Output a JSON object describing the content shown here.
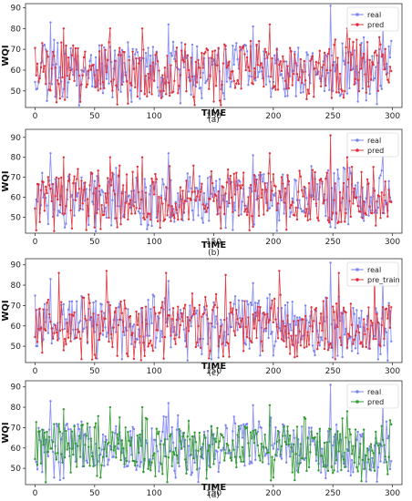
{
  "chart_data": [
    {
      "type": "line",
      "caption": "(a)",
      "xlabel": "TIME",
      "ylabel": "WQI",
      "xlim": [
        -8,
        308
      ],
      "ylim": [
        42,
        92
      ],
      "xticks": [
        0,
        50,
        100,
        150,
        200,
        250,
        300
      ],
      "yticks": [
        50,
        60,
        70,
        80,
        90
      ],
      "legend_position": "top-right",
      "series": [
        {
          "name": "real",
          "color": "#7b83f0",
          "seed": 11,
          "peaks": [
            [
              13,
              83
            ],
            [
              112,
              82
            ],
            [
              183,
              81
            ],
            [
              248,
              91
            ],
            [
              292,
              83
            ]
          ]
        },
        {
          "name": "pred",
          "color": "#e0303a",
          "seed": 12,
          "peaks": [
            [
              6,
              73
            ],
            [
              24,
              80
            ],
            [
              63,
              80
            ],
            [
              90,
              80
            ],
            [
              197,
              82
            ],
            [
              262,
              80
            ]
          ]
        }
      ]
    },
    {
      "type": "line",
      "caption": "(b)",
      "xlabel": "TIME",
      "ylabel": "WQI",
      "xlim": [
        -8,
        308
      ],
      "ylim": [
        42,
        94
      ],
      "xticks": [
        0,
        50,
        100,
        150,
        200,
        250,
        300
      ],
      "yticks": [
        50,
        60,
        70,
        80,
        90
      ],
      "legend_position": "top-right",
      "series": [
        {
          "name": "real",
          "color": "#7b83f0",
          "seed": 21,
          "peaks": [
            [
              13,
              82
            ],
            [
              112,
              82
            ],
            [
              183,
              81
            ],
            [
              292,
              82
            ]
          ]
        },
        {
          "name": "pred",
          "color": "#e0303a",
          "seed": 22,
          "peaks": [
            [
              6,
              68
            ],
            [
              24,
              80
            ],
            [
              63,
              80
            ],
            [
              90,
              80
            ],
            [
              197,
              82
            ],
            [
              248,
              91
            ],
            [
              262,
              80
            ]
          ]
        }
      ]
    },
    {
      "type": "line",
      "caption": "(c)",
      "xlabel": "TIME",
      "ylabel": "WQI",
      "xlim": [
        -8,
        308
      ],
      "ylim": [
        42,
        93
      ],
      "xticks": [
        0,
        50,
        100,
        150,
        200,
        250,
        300
      ],
      "yticks": [
        50,
        60,
        70,
        80,
        90
      ],
      "legend_position": "top-right",
      "series": [
        {
          "name": "real",
          "color": "#7b83f0",
          "seed": 31,
          "peaks": [
            [
              13,
              83
            ],
            [
              112,
              82
            ],
            [
              183,
              81
            ],
            [
              248,
              91
            ],
            [
              292,
              83
            ]
          ]
        },
        {
          "name": "pre_train",
          "color": "#e0303a",
          "seed": 32,
          "peaks": [
            [
              20,
              86
            ],
            [
              60,
              87
            ],
            [
              110,
              86
            ],
            [
              160,
              85
            ],
            [
              205,
              87
            ],
            [
              255,
              86
            ],
            [
              285,
              86
            ]
          ]
        }
      ]
    },
    {
      "type": "line",
      "caption": "(d)",
      "xlabel": "TIME",
      "ylabel": "WQI",
      "xlim": [
        -8,
        308
      ],
      "ylim": [
        42,
        93
      ],
      "xticks": [
        0,
        50,
        100,
        150,
        200,
        250,
        300
      ],
      "yticks": [
        50,
        60,
        70,
        80,
        90
      ],
      "legend_position": "top-right",
      "series": [
        {
          "name": "real",
          "color": "#7b83f0",
          "seed": 41,
          "peaks": [
            [
              13,
              83
            ],
            [
              112,
              82
            ],
            [
              183,
              81
            ],
            [
              248,
              91
            ],
            [
              292,
              83
            ]
          ]
        },
        {
          "name": "pred",
          "color": "#2e9a2e",
          "seed": 42,
          "peaks": [
            [
              24,
              79
            ],
            [
              63,
              80
            ],
            [
              90,
              80
            ],
            [
              197,
              81
            ],
            [
              262,
              78
            ]
          ]
        }
      ]
    }
  ]
}
